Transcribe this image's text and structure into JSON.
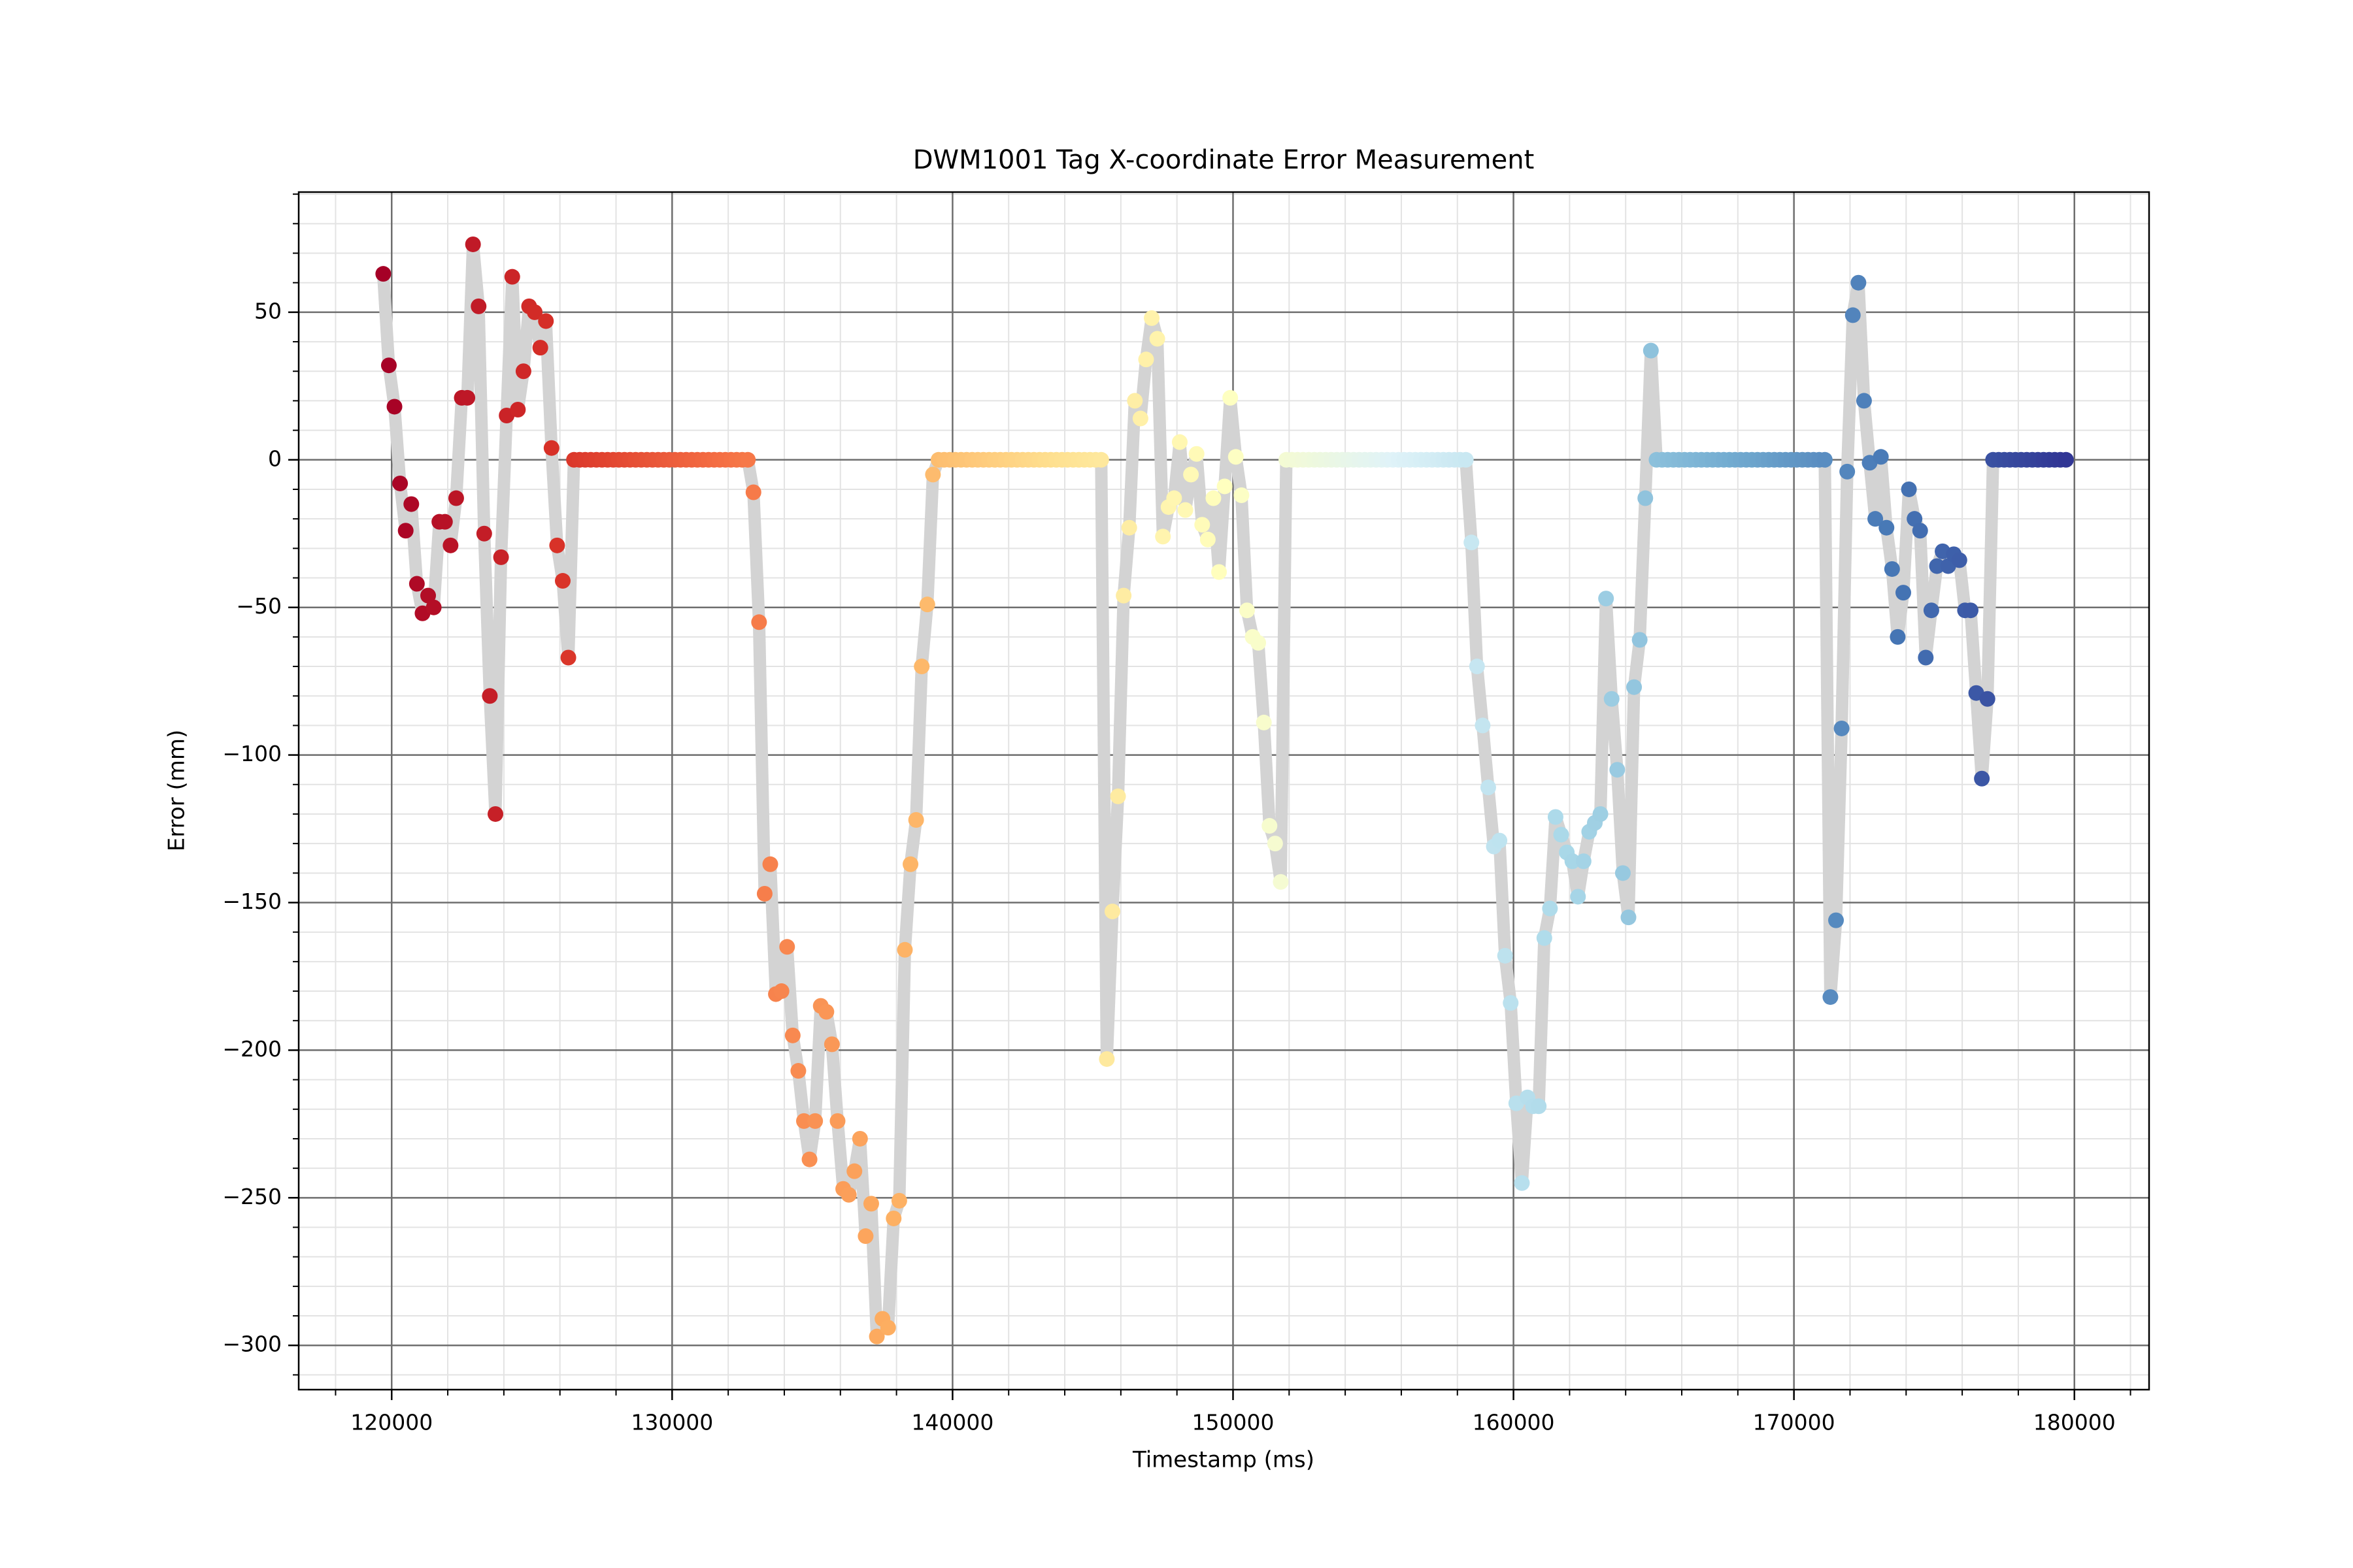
{
  "chart_data": {
    "type": "scatter-line",
    "title": "DWM1001 Tag X-coordinate Error Measurement",
    "xlabel": "Timestamp (ms)",
    "ylabel": "Error (mm)",
    "xlim": [
      116685,
      182663
    ],
    "ylim": [
      -315,
      90.7
    ],
    "xticks": [
      120000,
      130000,
      140000,
      150000,
      160000,
      170000,
      180000
    ],
    "yticks": [
      {
        "value": -300,
        "label": "−300"
      },
      {
        "value": -250,
        "label": "−250"
      },
      {
        "value": -200,
        "label": "−200"
      },
      {
        "value": -150,
        "label": "−150"
      },
      {
        "value": -100,
        "label": "−100"
      },
      {
        "value": -50,
        "label": "−50"
      },
      0,
      50
    ],
    "xminorticks": [
      118000,
      120000,
      122000,
      124000,
      126000,
      128000,
      130000,
      132000,
      134000,
      136000,
      138000,
      140000,
      142000,
      144000,
      146000,
      148000,
      150000,
      152000,
      154000,
      156000,
      158000,
      160000,
      162000,
      164000,
      166000,
      168000,
      170000,
      172000,
      174000,
      176000,
      178000,
      180000,
      182000
    ],
    "yminorticks": [
      -310,
      -300,
      -290,
      -280,
      -270,
      -260,
      -250,
      -240,
      -230,
      -220,
      -210,
      -200,
      -190,
      -180,
      -170,
      -160,
      -150,
      -140,
      -130,
      -120,
      -110,
      -100,
      -90,
      -80,
      -70,
      -60,
      -50,
      -40,
      -30,
      -20,
      -10,
      0,
      10,
      20,
      30,
      40,
      50,
      60,
      70,
      80,
      90
    ],
    "grid": true,
    "minor_grid": true,
    "line_color": "#d3d3d3",
    "colormap": [
      "#a50026",
      "#d73027",
      "#f46d43",
      "#fdae61",
      "#fee090",
      "#ffffbf",
      "#e0f3f8",
      "#abd9e9",
      "#74add1",
      "#4575b4",
      "#313695"
    ],
    "x": [
      119700,
      119900,
      120100,
      120300,
      120500,
      120700,
      120900,
      121100,
      121300,
      121500,
      121700,
      121900,
      122100,
      122300,
      122500,
      122700,
      122900,
      123100,
      123300,
      123500,
      123700,
      123900,
      124100,
      124300,
      124500,
      124700,
      124900,
      125100,
      125300,
      125500,
      125700,
      125900,
      126100,
      126300,
      126500,
      126700,
      126900,
      127100,
      127300,
      127500,
      127700,
      127900,
      128100,
      128300,
      128500,
      128700,
      128900,
      129100,
      129300,
      129500,
      129700,
      129900,
      130100,
      130300,
      130500,
      130700,
      130900,
      131100,
      131300,
      131500,
      131700,
      131900,
      132100,
      132300,
      132500,
      132700,
      132900,
      133100,
      133300,
      133500,
      133700,
      133900,
      134100,
      134300,
      134500,
      134700,
      134900,
      135100,
      135300,
      135500,
      135700,
      135900,
      136100,
      136300,
      136500,
      136700,
      136900,
      137100,
      137300,
      137500,
      137700,
      137900,
      138100,
      138300,
      138500,
      138700,
      138900,
      139100,
      139300,
      139500,
      139700,
      139900,
      140100,
      140300,
      140500,
      140700,
      140900,
      141100,
      141300,
      141500,
      141700,
      141900,
      142100,
      142300,
      142500,
      142700,
      142900,
      143100,
      143300,
      143500,
      143700,
      143900,
      144100,
      144300,
      144500,
      144700,
      144900,
      145100,
      145300,
      145500,
      145700,
      145900,
      146100,
      146300,
      146500,
      146700,
      146900,
      147100,
      147300,
      147500,
      147700,
      147900,
      148100,
      148300,
      148500,
      148700,
      148900,
      149100,
      149300,
      149500,
      149700,
      149900,
      150100,
      150300,
      150500,
      150700,
      150900,
      151100,
      151300,
      151500,
      151700,
      151900,
      152100,
      152300,
      152500,
      152700,
      152900,
      153100,
      153300,
      153500,
      153700,
      153900,
      154100,
      154300,
      154500,
      154700,
      154900,
      155100,
      155300,
      155500,
      155700,
      155900,
      156100,
      156300,
      156500,
      156700,
      156900,
      157100,
      157300,
      157500,
      157700,
      157900,
      158100,
      158300,
      158500,
      158700,
      158900,
      159100,
      159300,
      159500,
      159700,
      159900,
      160100,
      160300,
      160500,
      160700,
      160900,
      161100,
      161300,
      161500,
      161700,
      161900,
      162100,
      162300,
      162500,
      162700,
      162900,
      163100,
      163300,
      163500,
      163700,
      163900,
      164100,
      164300,
      164500,
      164700,
      164900,
      165100,
      165300,
      165500,
      165700,
      165900,
      166100,
      166300,
      166500,
      166700,
      166900,
      167100,
      167300,
      167500,
      167700,
      167900,
      168100,
      168300,
      168500,
      168700,
      168900,
      169100,
      169300,
      169500,
      169700,
      169900,
      170100,
      170300,
      170500,
      170700,
      170900,
      171100,
      171300,
      171500,
      171700,
      171900,
      172100,
      172300,
      172500,
      172700,
      172900,
      173100,
      173300,
      173500,
      173700,
      173900,
      174100,
      174300,
      174500,
      174700,
      174900,
      175100,
      175300,
      175500,
      175700,
      175900,
      176100,
      176300,
      176500,
      176700,
      176900,
      177100,
      177300,
      177500,
      177700,
      177900,
      178100,
      178300,
      178500,
      178700,
      178900,
      179100,
      179300,
      179500,
      179700
    ],
    "values": [
      63,
      32,
      18,
      -8,
      -24,
      -15,
      -42,
      -52,
      -46,
      -50,
      -21,
      -21,
      -29,
      -13,
      21,
      21,
      73,
      52,
      -25,
      -80,
      -120,
      -33,
      15,
      62,
      17,
      30,
      52,
      50,
      38,
      47,
      4,
      -29,
      -41,
      -67,
      0,
      0,
      0,
      0,
      0,
      0,
      0,
      0,
      0,
      0,
      0,
      0,
      0,
      0,
      0,
      0,
      0,
      0,
      0,
      0,
      0,
      0,
      0,
      0,
      0,
      0,
      0,
      0,
      0,
      0,
      0,
      0,
      -11,
      -55,
      -147,
      -137,
      -181,
      -180,
      -165,
      -195,
      -207,
      -224,
      -237,
      -224,
      -185,
      -187,
      -198,
      -224,
      -247,
      -249,
      -241,
      -230,
      -263,
      -252,
      -297,
      -291,
      -294,
      -257,
      -251,
      -166,
      -137,
      -122,
      -70,
      -49,
      -5,
      0,
      0,
      0,
      0,
      0,
      0,
      0,
      0,
      0,
      0,
      0,
      0,
      0,
      0,
      0,
      0,
      0,
      0,
      0,
      0,
      0,
      0,
      0,
      0,
      0,
      0,
      0,
      0,
      0,
      0,
      -203,
      -153,
      -114,
      -46,
      -23,
      20,
      14,
      34,
      48,
      41,
      -26,
      -16,
      -13,
      6,
      -17,
      -5,
      2,
      -22,
      -27,
      -13,
      -38,
      -9,
      21,
      1,
      -12,
      -51,
      -60,
      -62,
      -89,
      -124,
      -130,
      -143,
      0,
      0,
      0,
      0,
      0,
      0,
      0,
      0,
      0,
      0,
      0,
      0,
      0,
      0,
      0,
      0,
      0,
      0,
      0,
      0,
      0,
      0,
      0,
      0,
      0,
      0,
      0,
      0,
      0,
      0,
      0,
      0,
      0,
      -28,
      -70,
      -90,
      -111,
      -131,
      -129,
      -168,
      -184,
      -218,
      -245,
      -216,
      -219,
      -219,
      -162,
      -152,
      -121,
      -127,
      -133,
      -136,
      -148,
      -136,
      -126,
      -123,
      -120,
      -47,
      -81,
      -105,
      -140,
      -155,
      -77,
      -61,
      -13,
      37,
      0,
      0,
      0,
      0,
      0,
      0,
      0,
      0,
      0,
      0,
      0,
      0,
      0,
      0,
      0,
      0,
      0,
      0,
      0,
      0,
      0,
      0,
      0,
      0,
      0,
      0,
      0,
      0,
      0,
      0,
      0,
      -182,
      -156,
      -91,
      -4,
      49,
      60,
      20,
      -1,
      -20,
      1,
      -23,
      -37,
      -60,
      -45,
      -10,
      -20,
      -24,
      -67,
      -51,
      -36,
      -31,
      -36,
      -32,
      -34,
      -51,
      -51,
      -79,
      -108,
      -81,
      0,
      0,
      0,
      0,
      0,
      0,
      0,
      0,
      0,
      0,
      0,
      0,
      0,
      0
    ]
  }
}
